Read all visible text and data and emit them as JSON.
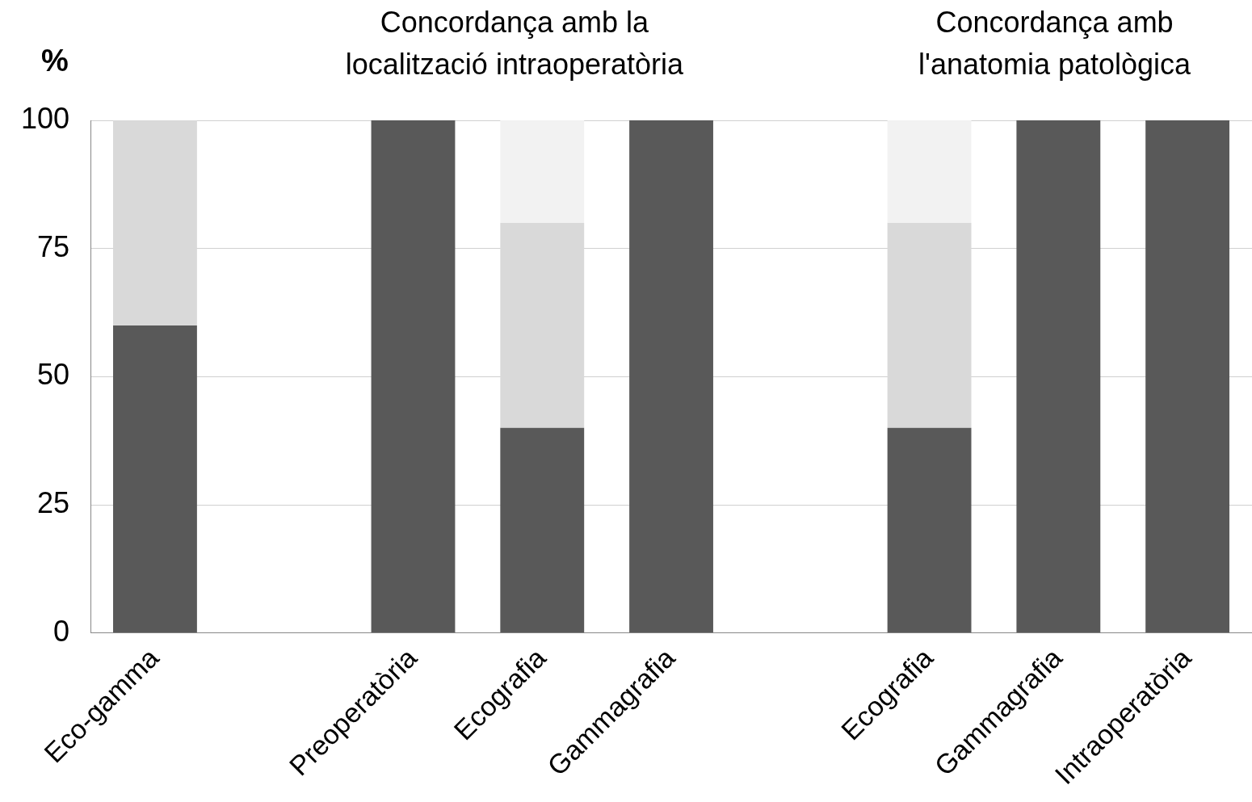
{
  "chart_data": {
    "type": "bar",
    "stacked": true,
    "ylabel": "%",
    "annotations": [
      "Concordança amb la localització intraoperatòria",
      "Concordança amb l'anatomia patològica"
    ],
    "categories": [
      "Eco-gamma",
      null,
      "Preoperatòria",
      "Ecografia",
      "Gammagrafia",
      null,
      "Ecografia",
      "Gammagrafia",
      "Intraoperatòria"
    ],
    "series": [
      {
        "color": "#595959",
        "values": [
          60,
          null,
          100,
          40,
          100,
          null,
          40,
          100,
          100
        ]
      },
      {
        "color": "#d9d9d9",
        "values": [
          40,
          null,
          0,
          40,
          0,
          null,
          40,
          0,
          0
        ]
      },
      {
        "color": "#f2f2f2",
        "values": [
          0,
          null,
          0,
          20,
          0,
          null,
          20,
          0,
          0
        ]
      }
    ],
    "ylim": [
      0,
      100
    ],
    "yticks": [
      0,
      25,
      50,
      75,
      100
    ],
    "grid": "y",
    "legend": false
  }
}
